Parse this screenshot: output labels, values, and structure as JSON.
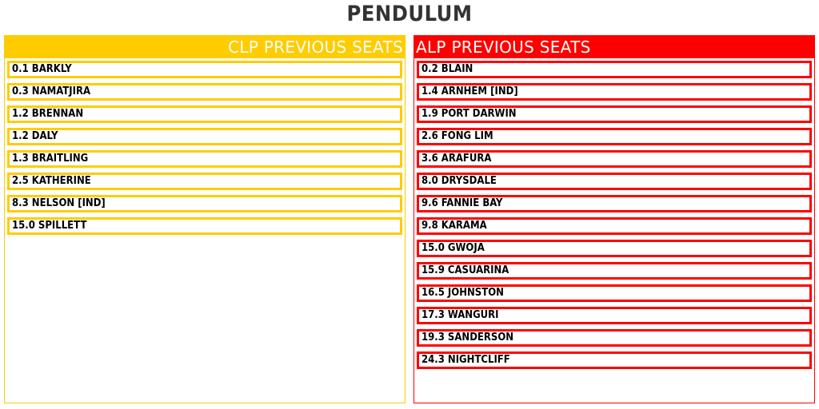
{
  "title": "PENDULUM",
  "colors": {
    "clp": "#FFCC00",
    "alp": "#FF0000"
  },
  "clp": {
    "header": "CLP PREVIOUS SEATS",
    "seats": [
      "0.1 BARKLY",
      "0.3 NAMATJIRA",
      "1.2 BRENNAN",
      "1.2 DALY",
      "1.3 BRAITLING",
      "2.5 KATHERINE",
      "8.3 NELSON [IND]",
      "15.0 SPILLETT"
    ]
  },
  "alp": {
    "header": "ALP PREVIOUS SEATS",
    "seats": [
      "0.2 BLAIN",
      "1.4 ARNHEM [IND]",
      "1.9 PORT DARWIN",
      "2.6 FONG LIM",
      "3.6 ARAFURA",
      "8.0 DRYSDALE",
      "9.6 FANNIE BAY",
      "9.8 KARAMA",
      "15.0 GWOJA",
      "15.9 CASUARINA",
      "16.5 JOHNSTON",
      "17.3 WANGURI",
      "19.3 SANDERSON",
      "24.3 NIGHTCLIFF"
    ]
  }
}
